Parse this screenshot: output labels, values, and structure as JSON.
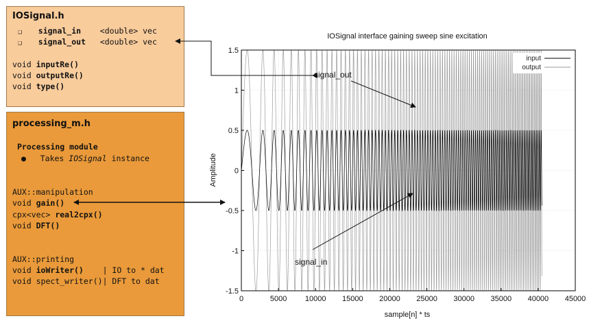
{
  "iosignal": {
    "title": "IOSignal.h",
    "members": [
      {
        "name": "signal_in",
        "type": "<double> vec"
      },
      {
        "name": "signal_out",
        "type": "<double> vec"
      }
    ],
    "methods": [
      {
        "prefix": "void ",
        "name": "inputRe()"
      },
      {
        "prefix": "void ",
        "name": "outputRe()"
      },
      {
        "prefix": "void ",
        "name": "type()"
      }
    ]
  },
  "processing": {
    "title": "processing_m.h",
    "module_heading": "Processing module",
    "bullet_prefix": "Takes ",
    "bullet_em": "IOSignal",
    "bullet_suffix": " instance",
    "manip_header": "AUX::manipulation",
    "manip_lines": [
      {
        "prefix": "void ",
        "name": "gain()"
      },
      {
        "prefix": "cpx<vec> ",
        "name": "real2cpx()"
      },
      {
        "prefix": "void ",
        "name": "DFT()"
      }
    ],
    "print_header": "AUX::printing",
    "print_lines": [
      {
        "prefix": "void ",
        "name": "ioWriter()",
        "pad": "    ",
        "comment": "| IO to * dat"
      },
      {
        "prefix": "void ",
        "name": "spect_writer()",
        "pad": "",
        "comment": "| DFT to dat"
      }
    ]
  },
  "annotations": {
    "signal_out": "signal_out",
    "signal_in": "signal_in"
  },
  "chart_data": {
    "type": "line",
    "title": "IOSignal interface gaining sweep sine excitation",
    "xlabel": "sample[n] * ts",
    "ylabel": "Amplitude",
    "xlim": [
      0,
      45000
    ],
    "ylim": [
      -1.5,
      1.5
    ],
    "xticks": [
      0,
      5000,
      10000,
      15000,
      20000,
      25000,
      30000,
      35000,
      40000,
      45000
    ],
    "yticks": [
      -1.5,
      -1,
      -0.5,
      0,
      0.5,
      1,
      1.5
    ],
    "legend_position": "top-right",
    "grid": true,
    "series": [
      {
        "name": "input",
        "amplitude": 0.5,
        "x_start": 0,
        "x_end": 40500,
        "color": "#000000"
      },
      {
        "name": "output",
        "amplitude": 1.5,
        "x_start": 0,
        "x_end": 40500,
        "color": "#9a9a9a"
      }
    ]
  },
  "colors": {
    "iosignal_box": "#f9cc9c",
    "processing_box": "#ea9a3a",
    "input_line": "#000000",
    "output_line": "#9a9a9a"
  }
}
